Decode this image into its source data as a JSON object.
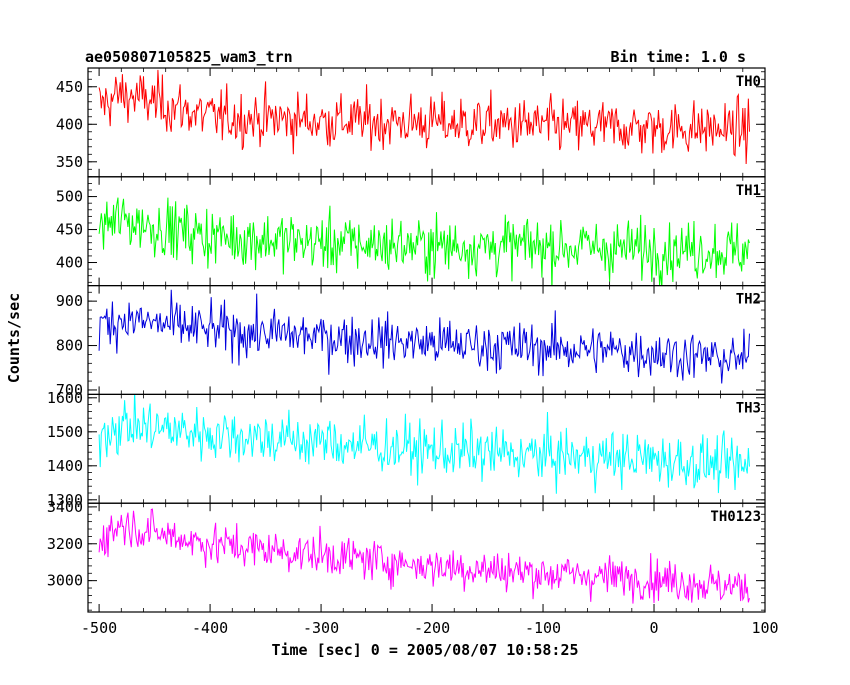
{
  "header": {
    "source": "ae050807105825_wam3_trn",
    "bin_time": "Bin time: 1.0 s"
  },
  "axes": {
    "xlabel": "Time [sec] 0 = 2005/08/07 10:58:25",
    "ylabel": "Counts/sec"
  },
  "colors": {
    "TH0": "#ff0000",
    "TH1": "#00ff00",
    "TH2": "#0000dd",
    "TH3": "#00ffff",
    "TH0123": "#ff00ff"
  },
  "chart_data": {
    "type": "line",
    "title": "",
    "x_range": [
      -510,
      100
    ],
    "x_ticks": [
      -500,
      -400,
      -300,
      -200,
      -100,
      0,
      100
    ],
    "x_data_start": -500,
    "x_data_end": 86,
    "bin_seconds": 1.0,
    "series": [
      {
        "name": "TH0",
        "ylim": [
          330,
          475
        ],
        "y_ticks": [
          350,
          400,
          450
        ],
        "trend": {
          "x": [
            -500,
            -480,
            -450,
            -400,
            -300,
            -200,
            -100,
            0,
            86
          ],
          "y": [
            425,
            440,
            430,
            410,
            405,
            402,
            398,
            395,
            393
          ]
        },
        "noise_sd": 18
      },
      {
        "name": "TH1",
        "ylim": [
          365,
          530
        ],
        "y_ticks": [
          400,
          450,
          500
        ],
        "trend": {
          "x": [
            -500,
            -480,
            -450,
            -400,
            -300,
            -200,
            -100,
            0,
            86
          ],
          "y": [
            455,
            465,
            455,
            440,
            430,
            425,
            425,
            420,
            418
          ]
        },
        "noise_sd": 22
      },
      {
        "name": "TH2",
        "ylim": [
          690,
          935
        ],
        "y_ticks": [
          700,
          800,
          900
        ],
        "trend": {
          "x": [
            -500,
            -480,
            -450,
            -400,
            -300,
            -200,
            -100,
            0,
            86
          ],
          "y": [
            845,
            860,
            850,
            835,
            820,
            805,
            795,
            785,
            765
          ]
        },
        "noise_sd": 28
      },
      {
        "name": "TH3",
        "ylim": [
          1290,
          1610
        ],
        "y_ticks": [
          1300,
          1400,
          1500,
          1600
        ],
        "trend": {
          "x": [
            -500,
            -480,
            -450,
            -400,
            -300,
            -200,
            -100,
            0,
            86
          ],
          "y": [
            1500,
            1520,
            1510,
            1495,
            1470,
            1445,
            1430,
            1420,
            1395
          ]
        },
        "noise_sd": 40
      },
      {
        "name": "TH0123",
        "ylim": [
          2830,
          3420
        ],
        "y_ticks": [
          3000,
          3200,
          3400
        ],
        "trend": {
          "x": [
            -500,
            -480,
            -450,
            -400,
            -300,
            -200,
            -100,
            0,
            86
          ],
          "y": [
            3220,
            3310,
            3260,
            3200,
            3140,
            3080,
            3040,
            3010,
            2960
          ]
        },
        "noise_sd": 55
      }
    ]
  }
}
